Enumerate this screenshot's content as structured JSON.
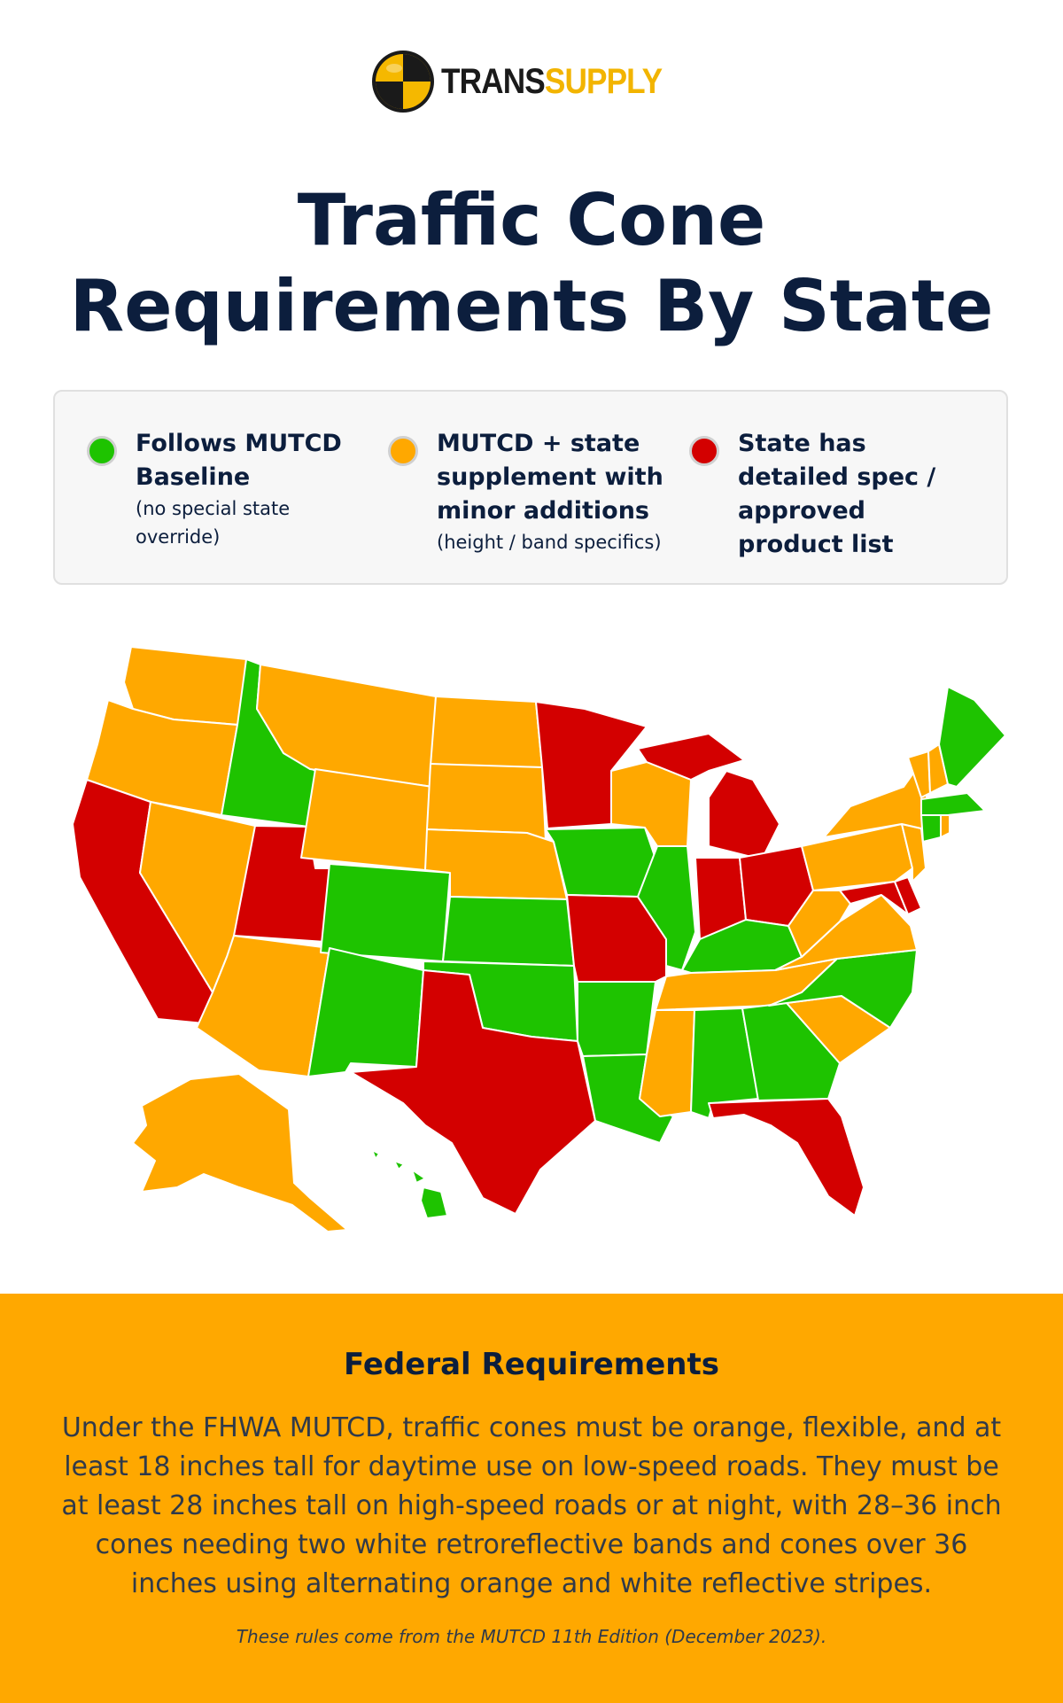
{
  "logo": {
    "brand_left": "TRANS",
    "brand_right": "SUPPLY"
  },
  "title": {
    "line1": "Traffic Cone",
    "line2": "Requirements By State"
  },
  "legend": {
    "items": [
      {
        "label": "Follows MUTCD Baseline",
        "note": "(no special state override)",
        "color": "#1ec300"
      },
      {
        "label": "MUTCD + state supplement with minor additions",
        "note": "(height / band specifics)",
        "color": "#ffa800"
      },
      {
        "label": "State has detailed spec / approved product list",
        "note": "",
        "color": "#d30000"
      }
    ]
  },
  "colors": {
    "baseline": "#1ec300",
    "supplement": "#ffa800",
    "detailed": "#d30000",
    "border": "#ffffff",
    "banner": "#ffa800",
    "navy": "#0c1e3d"
  },
  "map": {
    "categories": {
      "baseline": [
        "ID",
        "CO",
        "KS",
        "NM",
        "OK",
        "IA",
        "IL",
        "AR",
        "LA",
        "AL",
        "GA",
        "KY",
        "NC",
        "ME",
        "MA",
        "CT",
        "HI"
      ],
      "supplement": [
        "WA",
        "OR",
        "NV",
        "AZ",
        "MT",
        "WY",
        "ND",
        "SD",
        "NE",
        "WI",
        "MS",
        "TN",
        "SC",
        "VA",
        "WV",
        "PA",
        "NY",
        "VT",
        "NH",
        "NJ",
        "AK",
        "RI"
      ],
      "detailed": [
        "CA",
        "UT",
        "TX",
        "MN",
        "MO",
        "MI",
        "IN",
        "OH",
        "FL",
        "MD",
        "DE"
      ]
    }
  },
  "federal": {
    "title": "Federal Requirements",
    "body": "Under the FHWA MUTCD, traffic cones must be orange, flexible, and at least 18 inches tall for daytime use on low-speed roads. They must be at least 28 inches tall on high-speed roads or at night, with 28–36 inch cones needing two white retroreflective bands and cones over 36 inches using alternating orange and white reflective stripes.",
    "note": "These rules come from the MUTCD 11th Edition (December 2023)."
  }
}
